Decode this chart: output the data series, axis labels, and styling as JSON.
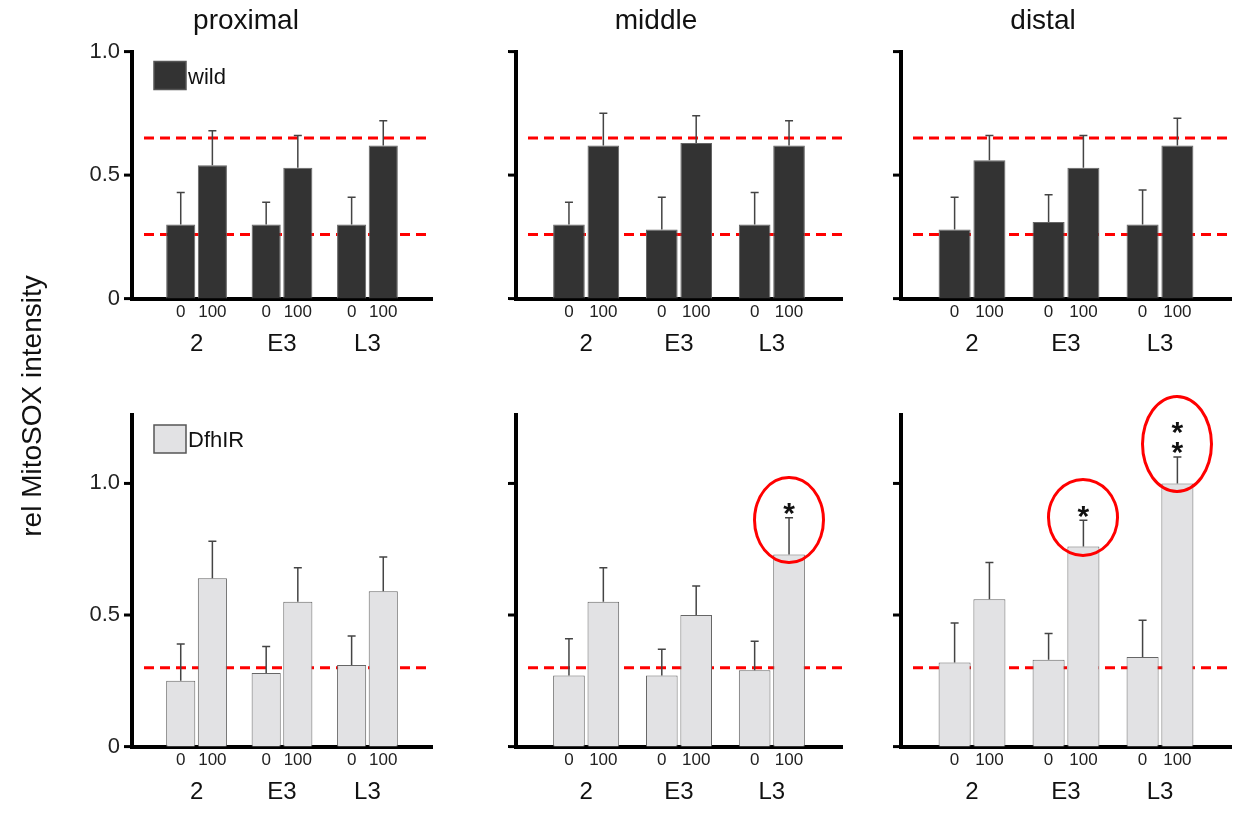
{
  "chart_data": [
    {
      "type": "bar",
      "title": "proximal",
      "ylabel": "rel MitoSOX intensity",
      "categories": [
        "0",
        "100",
        "0",
        "100",
        "0",
        "100"
      ],
      "annotations": [
        "2",
        "E3",
        "L3"
      ],
      "legend": "top left",
      "ylim": [
        0,
        1
      ],
      "yticks": [
        {
          "value": 0,
          "label": "0"
        },
        {
          "value": 0.5,
          "label": "0.5"
        },
        {
          "value": 1,
          "label": "1.0"
        }
      ],
      "series": [
        {
          "name": "wild",
          "color": "#333333",
          "values": [
            0.3,
            0.54,
            0.3,
            0.53,
            0.3,
            0.62
          ],
          "errors": [
            [
              0.3,
              0.43
            ],
            [
              0.54,
              0.68
            ],
            [
              0.3,
              0.39
            ],
            [
              0.53,
              0.66
            ],
            [
              0.3,
              0.41
            ],
            [
              0.62,
              0.72
            ]
          ]
        }
      ],
      "ref_lines": [
        {
          "axis": "y",
          "value": 0.65,
          "color": "#ff0000",
          "line_style": "dashed"
        },
        {
          "axis": "y",
          "value": 0.26,
          "color": "#ff0000",
          "line_style": "dashed"
        }
      ]
    },
    {
      "type": "bar",
      "title": "middle",
      "categories": [
        "0",
        "100",
        "0",
        "100",
        "0",
        "100"
      ],
      "annotations": [
        "2",
        "E3",
        "L3"
      ],
      "tick_labels": "x",
      "ylim": [
        0,
        1
      ],
      "yticks": [
        {
          "value": 0,
          "label": null
        },
        {
          "value": 0.5,
          "label": null
        },
        {
          "value": 1,
          "label": null
        }
      ],
      "series": [
        {
          "color": "#333333",
          "values": [
            0.3,
            0.62,
            0.28,
            0.63,
            0.3,
            0.62
          ],
          "errors": [
            [
              0.3,
              0.39
            ],
            [
              0.62,
              0.75
            ],
            [
              0.28,
              0.41
            ],
            [
              0.63,
              0.74
            ],
            [
              0.3,
              0.43
            ],
            [
              0.62,
              0.72
            ]
          ]
        }
      ],
      "ref_lines": [
        {
          "axis": "y",
          "value": 0.65,
          "color": "#ff0000",
          "line_style": "dashed"
        },
        {
          "axis": "y",
          "value": 0.26,
          "color": "#ff0000",
          "line_style": "dashed"
        }
      ]
    },
    {
      "type": "bar",
      "title": "distal",
      "categories": [
        "0",
        "100",
        "0",
        "100",
        "0",
        "100"
      ],
      "annotations": [
        "2",
        "E3",
        "L3"
      ],
      "tick_labels": "x",
      "ylim": [
        0,
        1
      ],
      "yticks": [
        {
          "value": 0,
          "label": null
        },
        {
          "value": 0.5,
          "label": null
        },
        {
          "value": 1,
          "label": null
        }
      ],
      "series": [
        {
          "color": "#333333",
          "values": [
            0.28,
            0.56,
            0.31,
            0.53,
            0.3,
            0.62
          ],
          "errors": [
            [
              0.28,
              0.41
            ],
            [
              0.56,
              0.66
            ],
            [
              0.31,
              0.42
            ],
            [
              0.53,
              0.66
            ],
            [
              0.3,
              0.44
            ],
            [
              0.62,
              0.73
            ]
          ]
        }
      ],
      "ref_lines": [
        {
          "axis": "y",
          "value": 0.65,
          "color": "#ff0000",
          "line_style": "dashed"
        },
        {
          "axis": "y",
          "value": 0.26,
          "color": "#ff0000",
          "line_style": "dashed"
        }
      ]
    },
    {
      "type": "bar",
      "categories": [
        "0",
        "100",
        "0",
        "100",
        "0",
        "100"
      ],
      "annotations": [
        "2",
        "E3",
        "L3"
      ],
      "legend": "top left",
      "ylim": [
        0,
        1.26
      ],
      "yticks": [
        {
          "value": 0,
          "label": "0"
        },
        {
          "value": 0.5,
          "label": "0.5"
        },
        {
          "value": 1,
          "label": "1.0"
        }
      ],
      "series": [
        {
          "name": "DfhIR",
          "color": "#e2e2e4",
          "values": [
            0.25,
            0.64,
            0.28,
            0.55,
            0.31,
            0.59
          ],
          "errors": [
            [
              0.25,
              0.39
            ],
            [
              0.64,
              0.78
            ],
            [
              0.28,
              0.38
            ],
            [
              0.55,
              0.68
            ],
            [
              0.31,
              0.42
            ],
            [
              0.59,
              0.72
            ]
          ]
        }
      ],
      "ref_lines": [
        {
          "axis": "y",
          "value": 0.3,
          "color": "#ff0000",
          "line_style": "dashed"
        }
      ]
    },
    {
      "type": "bar",
      "categories": [
        "0",
        "100",
        "0",
        "100",
        "0",
        "100"
      ],
      "annotations": [
        "2",
        "E3",
        "L3"
      ],
      "tick_labels": "x",
      "ylim": [
        0,
        1.26
      ],
      "yticks": [
        {
          "value": 0,
          "label": null
        },
        {
          "value": 0.5,
          "label": null
        },
        {
          "value": 1,
          "label": null
        }
      ],
      "series": [
        {
          "color": "#e2e2e4",
          "values": [
            0.27,
            0.55,
            0.27,
            0.5,
            0.29,
            0.73
          ],
          "errors": [
            [
              0.27,
              0.41
            ],
            [
              0.55,
              0.68
            ],
            [
              0.27,
              0.37
            ],
            [
              0.5,
              0.61
            ],
            [
              0.29,
              0.4
            ],
            [
              0.73,
              0.87
            ]
          ],
          "value_labels": [
            null,
            null,
            null,
            null,
            null,
            "*"
          ]
        }
      ],
      "ref_lines": [
        {
          "axis": "y",
          "value": 0.3,
          "color": "#ff0000",
          "line_style": "dashed"
        }
      ]
    },
    {
      "type": "bar",
      "categories": [
        "0",
        "100",
        "0",
        "100",
        "0",
        "100"
      ],
      "annotations": [
        "2",
        "E3",
        "L3"
      ],
      "tick_labels": "x",
      "ylim": [
        0,
        1.26
      ],
      "yticks": [
        {
          "value": 0,
          "label": null
        },
        {
          "value": 0.5,
          "label": null
        },
        {
          "value": 1,
          "label": null
        }
      ],
      "series": [
        {
          "color": "#e2e2e4",
          "values": [
            0.32,
            0.56,
            0.33,
            0.76,
            0.34,
            1.0
          ],
          "errors": [
            [
              0.32,
              0.47
            ],
            [
              0.56,
              0.7
            ],
            [
              0.33,
              0.43
            ],
            [
              0.76,
              0.86
            ],
            [
              0.34,
              0.48
            ],
            [
              1.0,
              1.1
            ]
          ],
          "value_labels": [
            null,
            null,
            null,
            "*",
            null,
            "**"
          ]
        }
      ],
      "ref_lines": [
        {
          "axis": "y",
          "value": 0.3,
          "color": "#ff0000",
          "line_style": "dashed"
        }
      ]
    }
  ]
}
